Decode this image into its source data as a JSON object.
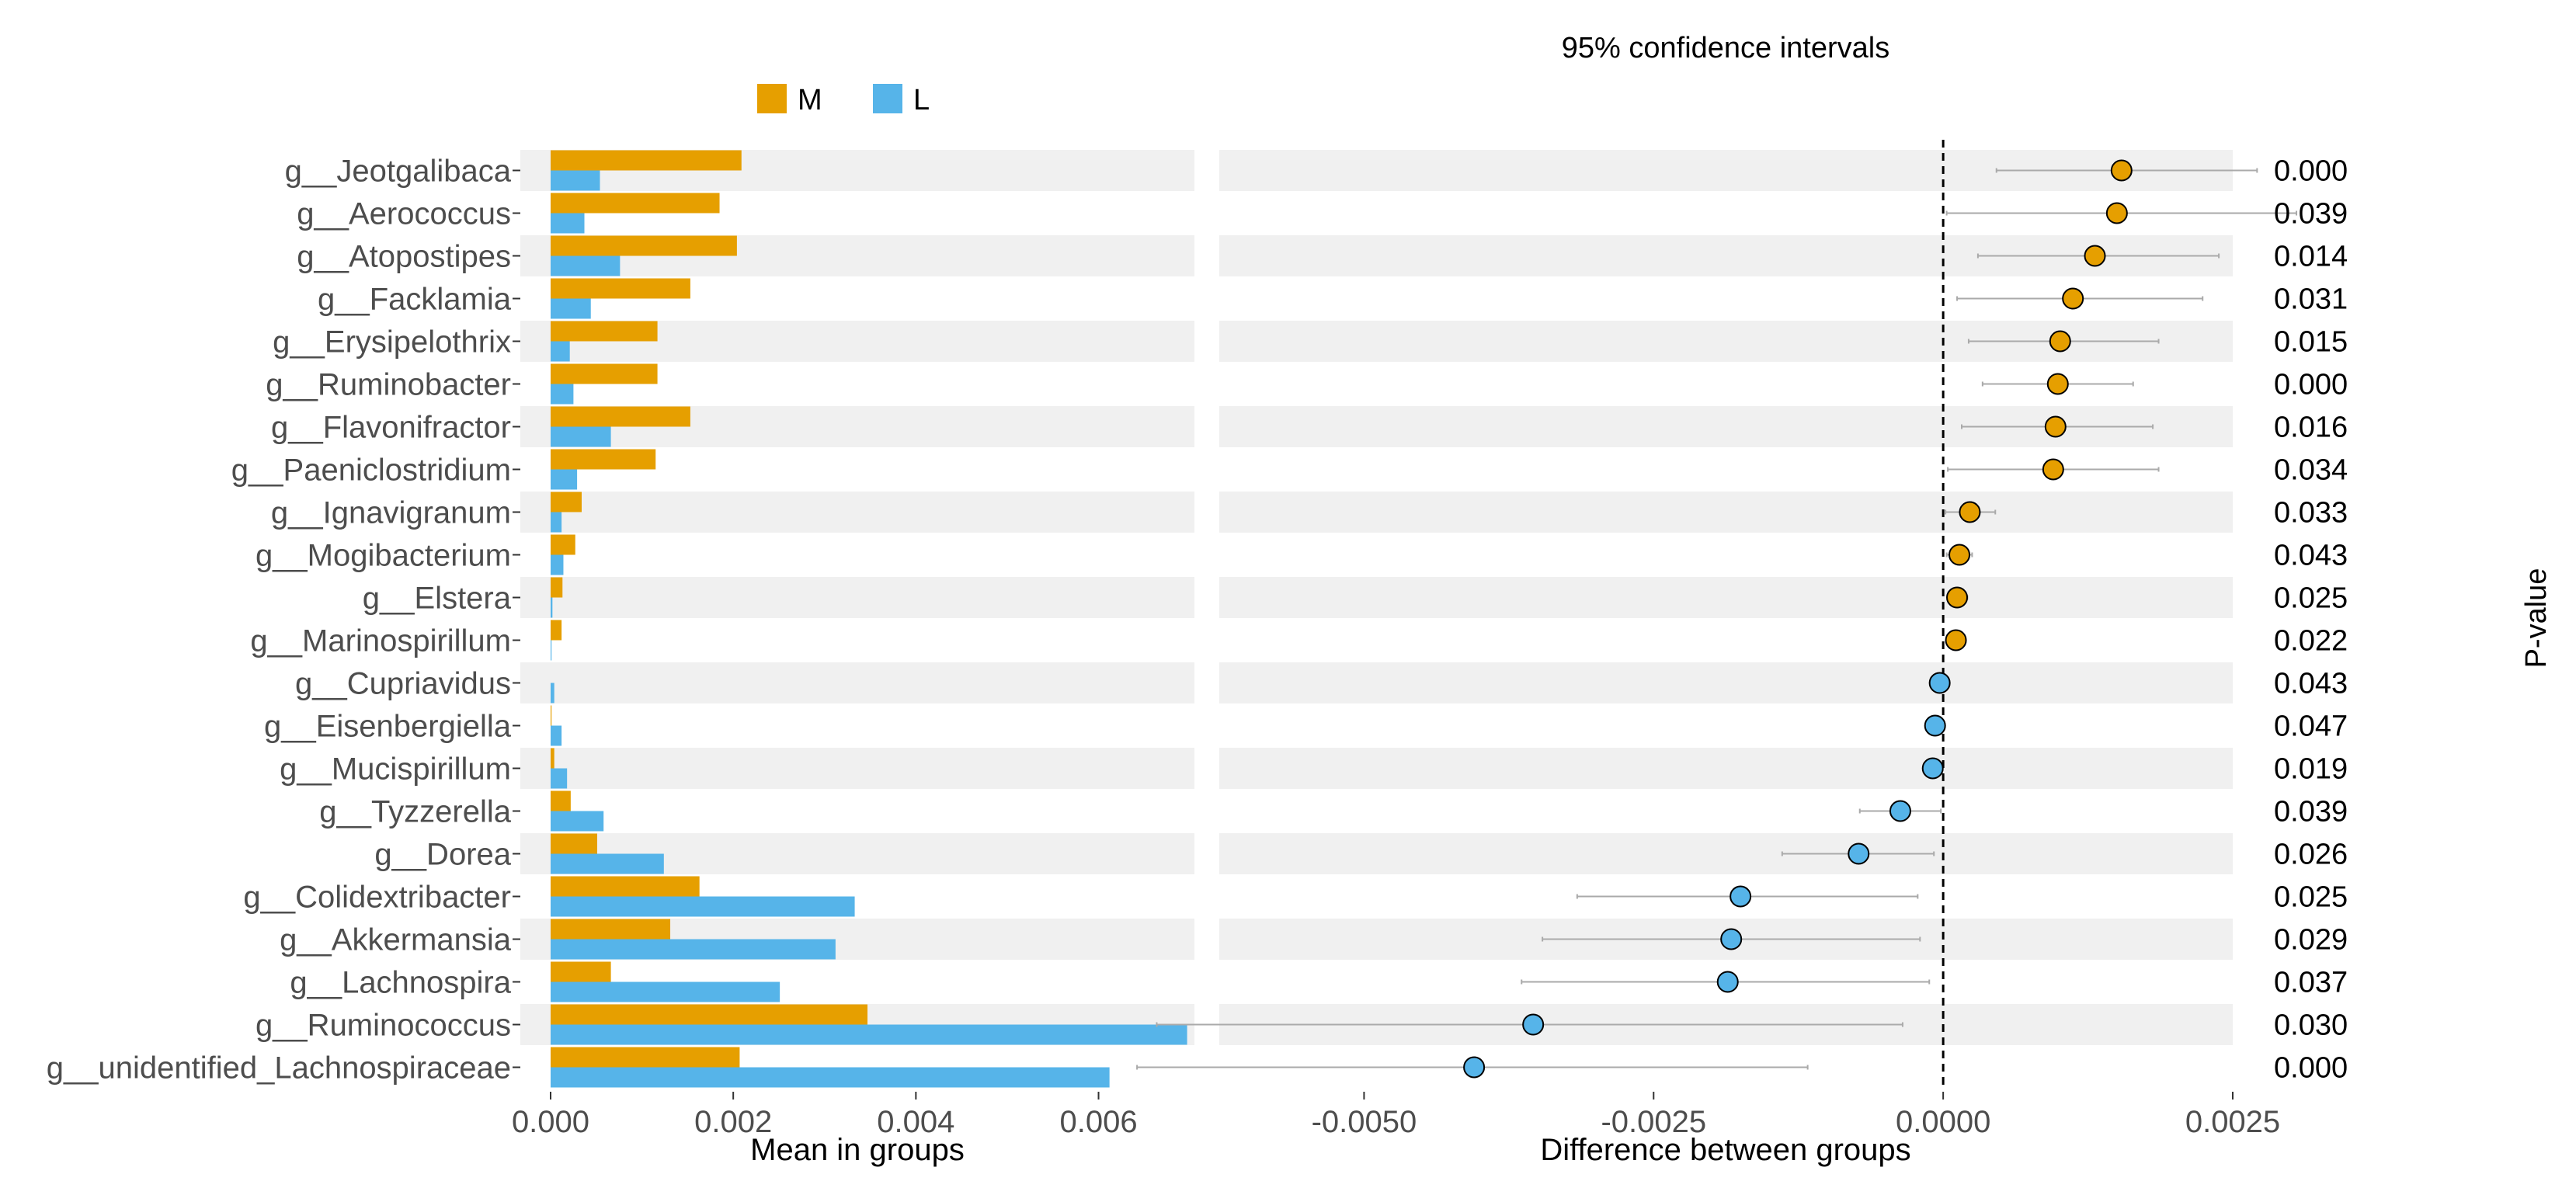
{
  "chart_data": {
    "type": "bar",
    "colors": {
      "M": "#E69F00",
      "L": "#56B4E9",
      "stripe": "#F0F0F0",
      "ci_line": "#AAAAAA"
    },
    "legend": [
      {
        "name": "M",
        "color": "#E69F00"
      },
      {
        "name": "L",
        "color": "#56B4E9"
      }
    ],
    "categories": [
      "g__Jeotgalibaca",
      "g__Aerococcus",
      "g__Atopostipes",
      "g__Facklamia",
      "g__Erysipelothrix",
      "g__Ruminobacter",
      "g__Flavonifractor",
      "g__Paeniclostridium",
      "g__Ignavigranum",
      "g__Mogibacterium",
      "g__Elstera",
      "g__Marinospirillum",
      "g__Cupriavidus",
      "g__Eisenbergiella",
      "g__Mucispirillum",
      "g__Tyzzerella",
      "g__Dorea",
      "g__Colidextribacter",
      "g__Akkermansia",
      "g__Lachnospira",
      "g__Ruminococcus",
      "g__unidentified_Lachnospiraceae"
    ],
    "bar_chart": {
      "xlabel": "Mean in groups",
      "xlim": [
        0,
        0.00705
      ],
      "ticks": [
        0,
        0.002,
        0.004,
        0.006
      ],
      "tick_labels": [
        "0.000",
        "0.002",
        "0.004",
        "0.006"
      ],
      "series": [
        {
          "name": "M",
          "values": [
            0.00209,
            0.00185,
            0.00204,
            0.00153,
            0.00117,
            0.00117,
            0.00153,
            0.00115,
            0.00034,
            0.00027,
            0.00013,
            0.00012,
            0.0,
            1e-05,
            4e-05,
            0.00022,
            0.00051,
            0.00163,
            0.00131,
            0.00066,
            0.00347,
            0.00207
          ]
        },
        {
          "name": "L",
          "values": [
            0.00054,
            0.00037,
            0.00076,
            0.00044,
            0.00021,
            0.00025,
            0.00066,
            0.00029,
            0.00012,
            0.00014,
            2e-05,
            1e-05,
            4e-05,
            0.00012,
            0.00018,
            0.00058,
            0.00124,
            0.00333,
            0.00312,
            0.00251,
            0.00697,
            0.00612
          ]
        }
      ]
    },
    "ci_chart": {
      "type": "scatter",
      "title": "95% confidence intervals",
      "xlabel": "Difference between groups",
      "xlim": [
        -0.00625,
        0.0025
      ],
      "ticks": [
        -0.005,
        -0.0025,
        0.0,
        0.0025
      ],
      "tick_labels": [
        "-0.0050",
        "-0.0025",
        "0.0000",
        "0.0025"
      ],
      "estimates": [
        0.00154,
        0.0015,
        0.00131,
        0.00112,
        0.00101,
        0.00099,
        0.00097,
        0.00095,
        0.00023,
        0.00014,
        0.00012,
        0.00011,
        -3e-05,
        -7e-05,
        -9e-05,
        -0.00037,
        -0.00073,
        -0.00175,
        -0.00183,
        -0.00186,
        -0.00354,
        -0.00405
      ],
      "lower": [
        0.00046,
        3e-05,
        0.0003,
        0.00012,
        0.00022,
        0.00034,
        0.00016,
        4e-05,
        2e-05,
        3e-05,
        4e-05,
        4e-05,
        -8e-05,
        -0.00012,
        -0.00016,
        -0.00072,
        -0.00139,
        -0.00316,
        -0.00346,
        -0.00364,
        -0.00679,
        -0.00696
      ],
      "upper": [
        0.00271,
        0.00305,
        0.00238,
        0.00224,
        0.00186,
        0.00164,
        0.00181,
        0.00186,
        0.00045,
        0.00025,
        0.00021,
        0.00018,
        2e-05,
        1e-05,
        -1e-05,
        -2e-05,
        -8e-05,
        -0.00022,
        -0.0002,
        -0.00012,
        -0.00035,
        -0.00117
      ],
      "group_colors": [
        "M",
        "M",
        "M",
        "M",
        "M",
        "M",
        "M",
        "M",
        "M",
        "M",
        "M",
        "M",
        "L",
        "L",
        "L",
        "L",
        "L",
        "L",
        "L",
        "L",
        "L",
        "L"
      ],
      "reference_line": 0
    },
    "p_values": {
      "label": "P-value",
      "values": [
        "0.000",
        "0.039",
        "0.014",
        "0.031",
        "0.015",
        "0.000",
        "0.016",
        "0.034",
        "0.033",
        "0.043",
        "0.025",
        "0.022",
        "0.043",
        "0.047",
        "0.019",
        "0.039",
        "0.026",
        "0.025",
        "0.029",
        "0.037",
        "0.030",
        "0.000"
      ]
    }
  }
}
